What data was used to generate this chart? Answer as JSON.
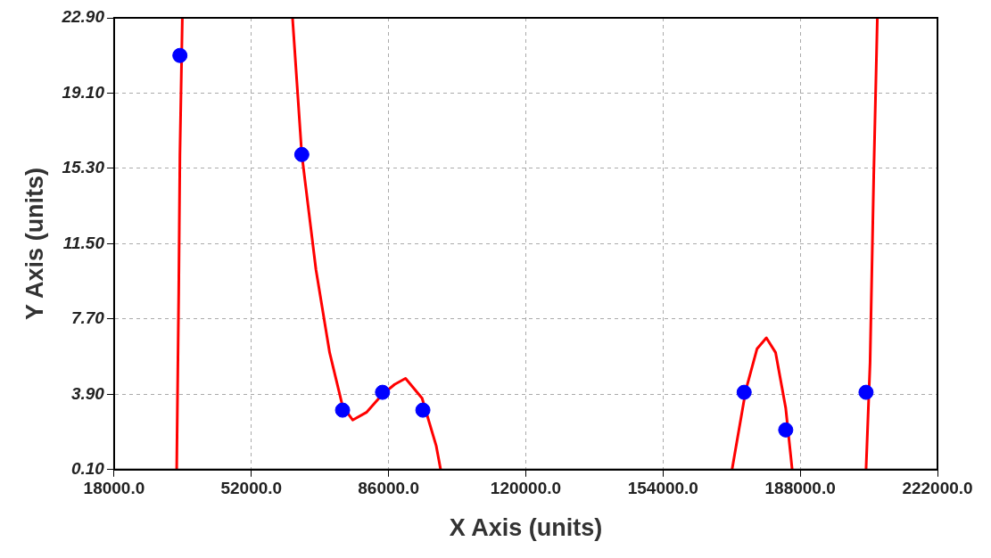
{
  "chart_data": {
    "type": "scatter",
    "xlabel": "X Axis (units)",
    "ylabel": "Y Axis (units)",
    "xlim": [
      18000,
      222000
    ],
    "ylim": [
      0.1,
      22.9
    ],
    "xticks": [
      {
        "value": 18000,
        "label": "18000.0"
      },
      {
        "value": 52000,
        "label": "52000.0"
      },
      {
        "value": 86000,
        "label": "86000.0"
      },
      {
        "value": 120000,
        "label": "120000.0"
      },
      {
        "value": 154000,
        "label": "154000.0"
      },
      {
        "value": 188000,
        "label": "188000.0"
      },
      {
        "value": 222000,
        "label": "222000.0"
      }
    ],
    "yticks": [
      {
        "value": 0.1,
        "label": "0.10"
      },
      {
        "value": 3.9,
        "label": "3.90"
      },
      {
        "value": 7.7,
        "label": "7.70"
      },
      {
        "value": 11.5,
        "label": "11.50"
      },
      {
        "value": 15.3,
        "label": "15.30"
      },
      {
        "value": 19.1,
        "label": "19.10"
      },
      {
        "value": 22.9,
        "label": "22.90"
      }
    ],
    "grid": true,
    "legend": false,
    "line_style": "dashed",
    "series": [
      {
        "type": "scatter",
        "color": "#0000ff",
        "marker": "circle",
        "x": [
          34300,
          64500,
          74600,
          84500,
          94500,
          174100,
          184400,
          204300
        ],
        "values": [
          21.0,
          16.0,
          3.1,
          4.0,
          3.1,
          4.0,
          2.1,
          4.0
        ]
      },
      {
        "type": "line",
        "color": "#ff0000",
        "marker": "none",
        "line_style": "solid",
        "x": [
          33500,
          34000,
          34300,
          34900,
          48000,
          62200,
          64500,
          68000,
          71400,
          74600,
          77100,
          80600,
          84500,
          87500,
          90200,
          94300,
          97800,
          98900,
          135000,
          171100,
          174500,
          177300,
          179600,
          181900,
          184400,
          186000,
          195000,
          204300,
          205300,
          206200,
          207100
        ],
        "values": [
          0.1,
          9.0,
          16.0,
          22.9,
          null,
          22.9,
          16.0,
          10.2,
          6.0,
          3.3,
          2.6,
          3.0,
          3.9,
          4.4,
          4.7,
          3.7,
          1.3,
          0.1,
          null,
          0.1,
          4.1,
          6.2,
          6.75,
          6.0,
          3.2,
          0.1,
          null,
          0.1,
          5.5,
          14.9,
          22.9
        ]
      }
    ]
  }
}
